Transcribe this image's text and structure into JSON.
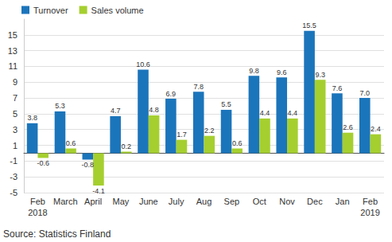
{
  "chart_data": {
    "type": "bar",
    "categories": [
      "Feb\n2018",
      "March",
      "April",
      "May",
      "June",
      "July",
      "Aug",
      "Sep",
      "Oct",
      "Nov",
      "Dec",
      "Jan",
      "Feb\n2019"
    ],
    "series": [
      {
        "name": "Turnover",
        "color": "#1b75bb",
        "values": [
          3.8,
          5.3,
          -0.8,
          4.7,
          10.6,
          6.9,
          7.8,
          5.5,
          9.8,
          9.6,
          15.5,
          7.6,
          7.0
        ],
        "value_labels": [
          "3.8",
          "5.3",
          "-0.8",
          "4.7",
          "10.6",
          "6.9",
          "7.8",
          "5.5",
          "9.8",
          "9.6",
          "15.5",
          "7.6",
          "7.0"
        ]
      },
      {
        "name": "Sales volume",
        "color": "#a5cf2f",
        "values": [
          -0.6,
          0.6,
          -4.1,
          0.2,
          4.8,
          1.7,
          2.2,
          0.6,
          4.4,
          4.4,
          9.3,
          2.6,
          2.4
        ]
      }
    ],
    "ylim": [
      -5,
      17
    ],
    "yticks": [
      -5,
      -3,
      -1,
      1,
      3,
      5,
      7,
      9,
      11,
      13,
      15
    ],
    "grid": true,
    "legend": "top-left",
    "data_labels": true,
    "source": "Source: Statistics Finland"
  }
}
